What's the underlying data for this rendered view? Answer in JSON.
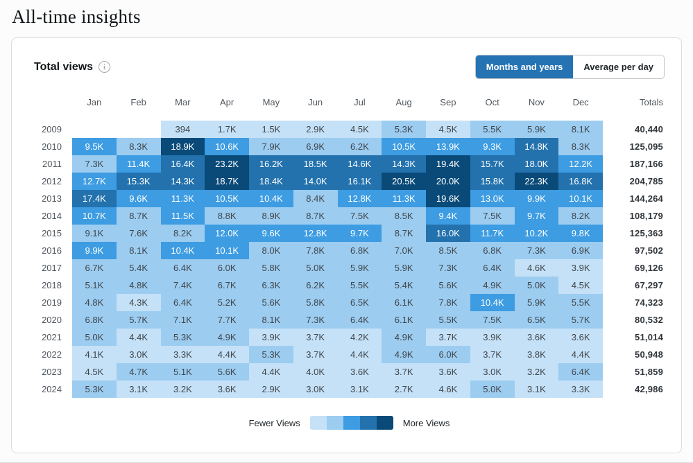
{
  "page": {
    "title": "All-time insights"
  },
  "card": {
    "heading": "Total views",
    "toggle": {
      "months_and_years": "Months and years",
      "average_per_day": "Average per day"
    }
  },
  "chart_data": {
    "type": "heatmap",
    "title": "Total views",
    "columns": [
      "Jan",
      "Feb",
      "Mar",
      "Apr",
      "May",
      "Jun",
      "Jul",
      "Aug",
      "Sep",
      "Oct",
      "Nov",
      "Dec"
    ],
    "totals_label": "Totals",
    "legend": {
      "fewer": "Fewer Views",
      "more": "More Views"
    },
    "palette": [
      "#C5E1F7",
      "#9CCCF0",
      "#3D9CE2",
      "#2372AE",
      "#0A4A78"
    ],
    "rows": [
      {
        "year": "2009",
        "total": "40,440",
        "cells": [
          [
            "",
            0
          ],
          [
            "",
            0
          ],
          [
            "394",
            1
          ],
          [
            "1.7K",
            1
          ],
          [
            "1.5K",
            1
          ],
          [
            "2.9K",
            1
          ],
          [
            "4.5K",
            1
          ],
          [
            "5.3K",
            2
          ],
          [
            "4.5K",
            1
          ],
          [
            "5.5K",
            2
          ],
          [
            "5.9K",
            2
          ],
          [
            "8.1K",
            2
          ]
        ]
      },
      {
        "year": "2010",
        "total": "125,095",
        "cells": [
          [
            "9.5K",
            3
          ],
          [
            "8.3K",
            2
          ],
          [
            "18.9K",
            5
          ],
          [
            "10.6K",
            3
          ],
          [
            "7.9K",
            2
          ],
          [
            "6.9K",
            2
          ],
          [
            "6.2K",
            2
          ],
          [
            "10.5K",
            3
          ],
          [
            "13.9K",
            3
          ],
          [
            "9.3K",
            3
          ],
          [
            "14.8K",
            4
          ],
          [
            "8.3K",
            2
          ]
        ]
      },
      {
        "year": "2011",
        "total": "187,166",
        "cells": [
          [
            "7.3K",
            2
          ],
          [
            "11.4K",
            3
          ],
          [
            "16.4K",
            4
          ],
          [
            "23.2K",
            5
          ],
          [
            "16.2K",
            4
          ],
          [
            "18.5K",
            4
          ],
          [
            "14.6K",
            4
          ],
          [
            "14.3K",
            4
          ],
          [
            "19.4K",
            5
          ],
          [
            "15.7K",
            4
          ],
          [
            "18.0K",
            4
          ],
          [
            "12.2K",
            3
          ]
        ]
      },
      {
        "year": "2012",
        "total": "204,785",
        "cells": [
          [
            "12.7K",
            3
          ],
          [
            "15.3K",
            4
          ],
          [
            "14.3K",
            4
          ],
          [
            "18.7K",
            5
          ],
          [
            "18.4K",
            4
          ],
          [
            "14.0K",
            4
          ],
          [
            "16.1K",
            4
          ],
          [
            "20.5K",
            5
          ],
          [
            "20.0K",
            5
          ],
          [
            "15.8K",
            4
          ],
          [
            "22.3K",
            5
          ],
          [
            "16.8K",
            4
          ]
        ]
      },
      {
        "year": "2013",
        "total": "144,264",
        "cells": [
          [
            "17.4K",
            4
          ],
          [
            "9.6K",
            3
          ],
          [
            "11.3K",
            3
          ],
          [
            "10.5K",
            3
          ],
          [
            "10.4K",
            3
          ],
          [
            "8.4K",
            2
          ],
          [
            "12.8K",
            3
          ],
          [
            "11.3K",
            3
          ],
          [
            "19.6K",
            5
          ],
          [
            "13.0K",
            3
          ],
          [
            "9.9K",
            3
          ],
          [
            "10.1K",
            3
          ]
        ]
      },
      {
        "year": "2014",
        "total": "108,179",
        "cells": [
          [
            "10.7K",
            3
          ],
          [
            "8.7K",
            2
          ],
          [
            "11.5K",
            3
          ],
          [
            "8.8K",
            2
          ],
          [
            "8.9K",
            2
          ],
          [
            "8.7K",
            2
          ],
          [
            "7.5K",
            2
          ],
          [
            "8.5K",
            2
          ],
          [
            "9.4K",
            3
          ],
          [
            "7.5K",
            2
          ],
          [
            "9.7K",
            3
          ],
          [
            "8.2K",
            2
          ]
        ]
      },
      {
        "year": "2015",
        "total": "125,363",
        "cells": [
          [
            "9.1K",
            2
          ],
          [
            "7.6K",
            2
          ],
          [
            "8.2K",
            2
          ],
          [
            "12.0K",
            3
          ],
          [
            "9.6K",
            3
          ],
          [
            "12.8K",
            3
          ],
          [
            "9.7K",
            3
          ],
          [
            "8.7K",
            2
          ],
          [
            "16.0K",
            4
          ],
          [
            "11.7K",
            3
          ],
          [
            "10.2K",
            3
          ],
          [
            "9.8K",
            3
          ]
        ]
      },
      {
        "year": "2016",
        "total": "97,502",
        "cells": [
          [
            "9.9K",
            3
          ],
          [
            "8.1K",
            2
          ],
          [
            "10.4K",
            3
          ],
          [
            "10.1K",
            3
          ],
          [
            "8.0K",
            2
          ],
          [
            "7.8K",
            2
          ],
          [
            "6.8K",
            2
          ],
          [
            "7.0K",
            2
          ],
          [
            "8.5K",
            2
          ],
          [
            "6.8K",
            2
          ],
          [
            "7.3K",
            2
          ],
          [
            "6.9K",
            2
          ]
        ]
      },
      {
        "year": "2017",
        "total": "69,126",
        "cells": [
          [
            "6.7K",
            2
          ],
          [
            "5.4K",
            2
          ],
          [
            "6.4K",
            2
          ],
          [
            "6.0K",
            2
          ],
          [
            "5.8K",
            2
          ],
          [
            "5.0K",
            2
          ],
          [
            "5.9K",
            2
          ],
          [
            "5.9K",
            2
          ],
          [
            "7.3K",
            2
          ],
          [
            "6.4K",
            2
          ],
          [
            "4.6K",
            1
          ],
          [
            "3.9K",
            1
          ]
        ]
      },
      {
        "year": "2018",
        "total": "67,297",
        "cells": [
          [
            "5.1K",
            2
          ],
          [
            "4.8K",
            2
          ],
          [
            "7.4K",
            2
          ],
          [
            "6.7K",
            2
          ],
          [
            "6.3K",
            2
          ],
          [
            "6.2K",
            2
          ],
          [
            "5.5K",
            2
          ],
          [
            "5.4K",
            2
          ],
          [
            "5.6K",
            2
          ],
          [
            "4.9K",
            2
          ],
          [
            "5.0K",
            2
          ],
          [
            "4.5K",
            1
          ]
        ]
      },
      {
        "year": "2019",
        "total": "74,323",
        "cells": [
          [
            "4.8K",
            2
          ],
          [
            "4.3K",
            1
          ],
          [
            "6.4K",
            2
          ],
          [
            "5.2K",
            2
          ],
          [
            "5.6K",
            2
          ],
          [
            "5.8K",
            2
          ],
          [
            "6.5K",
            2
          ],
          [
            "6.1K",
            2
          ],
          [
            "7.8K",
            2
          ],
          [
            "10.4K",
            3
          ],
          [
            "5.9K",
            2
          ],
          [
            "5.5K",
            2
          ]
        ]
      },
      {
        "year": "2020",
        "total": "80,532",
        "cells": [
          [
            "6.8K",
            2
          ],
          [
            "5.7K",
            2
          ],
          [
            "7.1K",
            2
          ],
          [
            "7.7K",
            2
          ],
          [
            "8.1K",
            2
          ],
          [
            "7.3K",
            2
          ],
          [
            "6.4K",
            2
          ],
          [
            "6.1K",
            2
          ],
          [
            "5.5K",
            2
          ],
          [
            "7.5K",
            2
          ],
          [
            "6.5K",
            2
          ],
          [
            "5.7K",
            2
          ]
        ]
      },
      {
        "year": "2021",
        "total": "51,014",
        "cells": [
          [
            "5.0K",
            2
          ],
          [
            "4.4K",
            1
          ],
          [
            "5.3K",
            2
          ],
          [
            "4.9K",
            2
          ],
          [
            "3.9K",
            1
          ],
          [
            "3.7K",
            1
          ],
          [
            "4.2K",
            1
          ],
          [
            "4.9K",
            2
          ],
          [
            "3.7K",
            1
          ],
          [
            "3.9K",
            1
          ],
          [
            "3.6K",
            1
          ],
          [
            "3.6K",
            1
          ]
        ]
      },
      {
        "year": "2022",
        "total": "50,948",
        "cells": [
          [
            "4.1K",
            1
          ],
          [
            "3.0K",
            1
          ],
          [
            "3.3K",
            1
          ],
          [
            "4.4K",
            1
          ],
          [
            "5.3K",
            2
          ],
          [
            "3.7K",
            1
          ],
          [
            "4.4K",
            1
          ],
          [
            "4.9K",
            2
          ],
          [
            "6.0K",
            2
          ],
          [
            "3.7K",
            1
          ],
          [
            "3.8K",
            1
          ],
          [
            "4.4K",
            1
          ]
        ]
      },
      {
        "year": "2023",
        "total": "51,859",
        "cells": [
          [
            "4.5K",
            1
          ],
          [
            "4.7K",
            2
          ],
          [
            "5.1K",
            2
          ],
          [
            "5.6K",
            2
          ],
          [
            "4.4K",
            1
          ],
          [
            "4.0K",
            1
          ],
          [
            "3.6K",
            1
          ],
          [
            "3.7K",
            1
          ],
          [
            "3.6K",
            1
          ],
          [
            "3.0K",
            1
          ],
          [
            "3.2K",
            1
          ],
          [
            "6.4K",
            2
          ]
        ]
      },
      {
        "year": "2024",
        "total": "42,986",
        "cells": [
          [
            "5.3K",
            2
          ],
          [
            "3.1K",
            1
          ],
          [
            "3.2K",
            1
          ],
          [
            "3.6K",
            1
          ],
          [
            "2.9K",
            1
          ],
          [
            "3.0K",
            1
          ],
          [
            "3.1K",
            1
          ],
          [
            "2.7K",
            1
          ],
          [
            "4.6K",
            1
          ],
          [
            "5.0K",
            2
          ],
          [
            "3.1K",
            1
          ],
          [
            "3.3K",
            1
          ]
        ]
      }
    ]
  }
}
